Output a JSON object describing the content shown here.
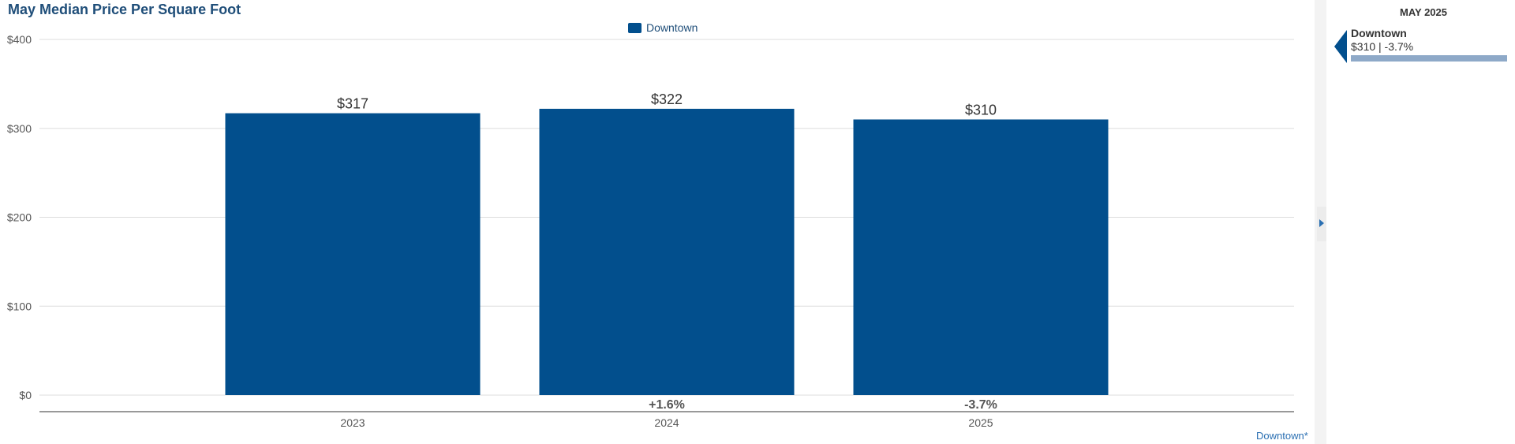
{
  "chart_data": {
    "type": "bar",
    "title": "May Median Price Per Square Foot",
    "categories": [
      "2023",
      "2024",
      "2025"
    ],
    "series": [
      {
        "name": "Downtown",
        "values": [
          317,
          322,
          310
        ],
        "color": "#024f8d"
      }
    ],
    "value_labels": [
      "$317",
      "$322",
      "$310"
    ],
    "change_labels": [
      "",
      "+1.6%",
      "-3.7%"
    ],
    "y_ticks": [
      0,
      100,
      200,
      300,
      400
    ],
    "y_tick_labels": [
      "$0",
      "$100",
      "$200",
      "$300",
      "$400"
    ],
    "ylim": [
      0,
      400
    ],
    "grid": true,
    "legend_position": "top-center"
  },
  "sidebar": {
    "period": "MAY 2025",
    "series_name": "Downtown",
    "value_text": "$310 | -3.7%"
  },
  "footnote": "Downtown*",
  "colors": {
    "bar": "#024f8d",
    "title": "#1f4e79",
    "grid": "#dddddd",
    "sidebar_bar": "#8ea9c8"
  }
}
